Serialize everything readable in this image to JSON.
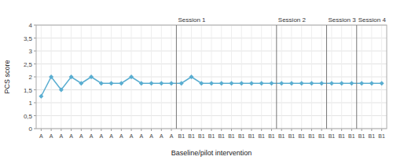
{
  "chart_data": {
    "type": "line",
    "categories": [
      "A",
      "A",
      "A",
      "A",
      "A",
      "A",
      "A",
      "A",
      "A",
      "A",
      "A",
      "A",
      "A",
      "A",
      "B1",
      "B1",
      "B1",
      "B1",
      "B1",
      "B1",
      "B1",
      "B1",
      "B1",
      "B1",
      "B1",
      "B1",
      "B1",
      "B1",
      "B1",
      "B1",
      "B1",
      "B1",
      "B1",
      "B1",
      "B1"
    ],
    "values": [
      1.25,
      2.0,
      1.5,
      2.0,
      1.75,
      2.0,
      1.75,
      1.75,
      1.75,
      2.0,
      1.75,
      1.75,
      1.75,
      1.75,
      1.75,
      2.0,
      1.75,
      1.75,
      1.75,
      1.75,
      1.75,
      1.75,
      1.75,
      1.75,
      1.75,
      1.75,
      1.75,
      1.75,
      1.75,
      1.75,
      1.75,
      1.75,
      1.75,
      1.75,
      1.75
    ],
    "color": "#5BAED1",
    "marker": "diamond",
    "ylabel": "PCS score",
    "xlabel": "Baseline/pilot intervention",
    "ylim": [
      0,
      4
    ],
    "yticks": [
      0,
      {
        "value": 0.5,
        "label": "0,5"
      },
      1,
      {
        "value": 1.5,
        "label": "1,5"
      },
      2,
      {
        "value": 2.5,
        "label": "2,5"
      },
      3,
      {
        "value": 3.5,
        "label": "3,5"
      },
      4
    ],
    "grid": true,
    "annotations": [
      {
        "x_index": 14,
        "label": "Session 1"
      },
      {
        "x_index": 24,
        "label": "Session 2"
      },
      {
        "x_index": 29,
        "label": "Session 3"
      },
      {
        "x_index": 32,
        "label": "Session 4"
      }
    ]
  }
}
